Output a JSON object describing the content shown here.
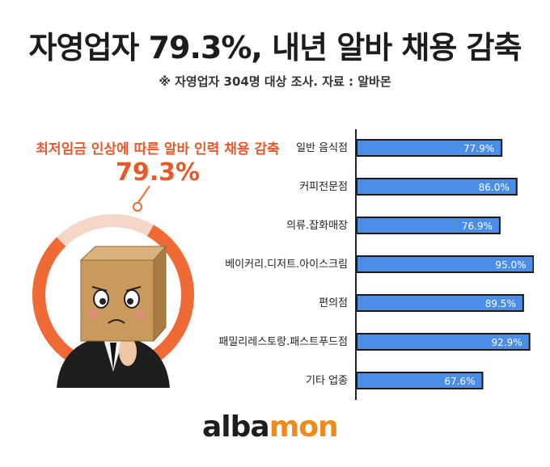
{
  "header": {
    "title": "자영업자 79.3%, 내년 알바 채용 감축",
    "subtitle": "※ 자영업자 304명 대상 조사. 자료 : 알바몬"
  },
  "callout": {
    "label": "최저임금 인상에 따른 알바 인력 채용 감축",
    "value": "79.3%",
    "percent": 79.3
  },
  "logo": {
    "text_a": "alba",
    "text_b": "mon"
  },
  "colors": {
    "bar": "#4a8ee8",
    "bar_border": "#1a1a1a",
    "accent": "#e8592a",
    "ring": "#ef6a35"
  },
  "chart_data": {
    "type": "bar",
    "orientation": "horizontal",
    "categories": [
      "일반 음식점",
      "커피전문점",
      "의류.잡화매장",
      "베이커리.디저트.아이스크림",
      "편의점",
      "패밀리레스토랑.패스트푸드점",
      "기타 업종"
    ],
    "values": [
      77.9,
      86.0,
      76.9,
      95.0,
      89.5,
      92.9,
      67.6
    ],
    "labels": [
      "77.9%",
      "86.0%",
      "76.9%",
      "95.0%",
      "89.5%",
      "92.9%",
      "67.6%"
    ],
    "xlim": [
      0,
      100
    ]
  }
}
